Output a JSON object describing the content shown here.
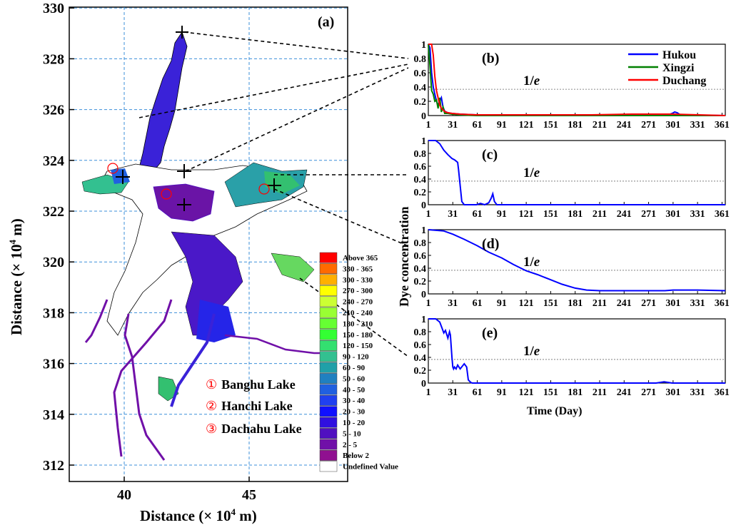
{
  "panel_a": {
    "label": "(a)",
    "xlabel": "Distance (× 10",
    "xlabel_exp": "4",
    "xlabel_unit": " m)",
    "ylabel": "Distance (× 10",
    "ylabel_exp": "4",
    "ylabel_unit": " m)",
    "x_ticks": [
      "40",
      "45"
    ],
    "y_ticks": [
      "312",
      "314",
      "316",
      "318",
      "320",
      "322",
      "324",
      "326",
      "328",
      "330"
    ],
    "lakes": [
      {
        "num": "①",
        "name": "Banghu Lake"
      },
      {
        "num": "②",
        "name": "Hanchi Lake"
      },
      {
        "num": "③",
        "name": "Dachahu Lake"
      }
    ],
    "legend": [
      {
        "label": "Above 365",
        "color": "#ff0000"
      },
      {
        "label": "330 - 365",
        "color": "#ff6a00"
      },
      {
        "label": "300 - 330",
        "color": "#ffb000"
      },
      {
        "label": "270 - 300",
        "color": "#ffff00"
      },
      {
        "label": "240 - 270",
        "color": "#ccff33"
      },
      {
        "label": "210 - 240",
        "color": "#99ff33"
      },
      {
        "label": "180 - 210",
        "color": "#66ff33"
      },
      {
        "label": "150 - 180",
        "color": "#33ff33"
      },
      {
        "label": "120 - 150",
        "color": "#33e070"
      },
      {
        "label": "90 - 120",
        "color": "#33c090"
      },
      {
        "label": "60 - 90",
        "color": "#20a0a8"
      },
      {
        "label": "50 - 60",
        "color": "#2080c0"
      },
      {
        "label": "40 - 50",
        "color": "#2060e0"
      },
      {
        "label": "30 - 40",
        "color": "#2040f0"
      },
      {
        "label": "20 - 30",
        "color": "#1010ff"
      },
      {
        "label": "10 - 20",
        "color": "#3010e0"
      },
      {
        "label": "5 - 10",
        "color": "#5010c0"
      },
      {
        "label": "2 - 5",
        "color": "#7010a8"
      },
      {
        "label": "Below 2",
        "color": "#901090"
      },
      {
        "label": "Undefined Value",
        "color": "#ffffff"
      }
    ]
  },
  "shared": {
    "ylabel": "Dye concentration",
    "xlabel": "Time (Day)",
    "threshold_label": "1/e",
    "x_ticks": [
      "1",
      "31",
      "61",
      "91",
      "121",
      "151",
      "181",
      "211",
      "241",
      "271",
      "301",
      "331",
      "361"
    ],
    "y_ticks": [
      "0",
      "0.2",
      "0.4",
      "0.6",
      "0.8",
      "1"
    ]
  },
  "chart_data": [
    {
      "type": "line",
      "panel": "(b)",
      "xlabel": "",
      "ylabel": "",
      "xlim": [
        1,
        365
      ],
      "ylim": [
        0,
        1
      ],
      "threshold": 0.368,
      "legend": "top-right",
      "series": [
        {
          "name": "Hukou",
          "color": "#0000ff",
          "x": [
            1,
            3,
            5,
            7,
            9,
            11,
            13,
            15,
            17,
            19,
            21,
            25,
            30,
            40,
            60,
            120,
            200,
            290,
            295,
            300,
            303,
            306,
            310,
            365
          ],
          "y": [
            1.0,
            0.95,
            0.6,
            0.4,
            0.3,
            0.2,
            0.15,
            0.2,
            0.25,
            0.12,
            0.06,
            0.04,
            0.03,
            0.02,
            0.01,
            0.0,
            0.0,
            0.0,
            0.01,
            0.03,
            0.05,
            0.04,
            0.01,
            0.0
          ]
        },
        {
          "name": "Xingzi",
          "color": "#008000",
          "x": [
            1,
            3,
            5,
            7,
            9,
            11,
            13,
            15,
            17,
            19,
            21,
            25,
            30,
            40,
            60,
            120,
            200,
            300,
            365
          ],
          "y": [
            1.0,
            0.7,
            0.35,
            0.3,
            0.2,
            0.22,
            0.1,
            0.25,
            0.05,
            0.12,
            0.03,
            0.03,
            0.02,
            0.01,
            0.0,
            0.0,
            0.0,
            0.0,
            0.0
          ]
        },
        {
          "name": "Duchang",
          "color": "#ff0000",
          "x": [
            1,
            3,
            5,
            7,
            9,
            11,
            13,
            15,
            17,
            19,
            22,
            25,
            30,
            40,
            60,
            120,
            200,
            250,
            290,
            300,
            365
          ],
          "y": [
            1.0,
            1.0,
            1.0,
            0.85,
            0.55,
            0.35,
            0.25,
            0.15,
            0.1,
            0.08,
            0.05,
            0.04,
            0.03,
            0.02,
            0.01,
            0.01,
            0.01,
            0.02,
            0.02,
            0.02,
            0.0
          ]
        }
      ]
    },
    {
      "type": "line",
      "panel": "(c)",
      "xlim": [
        1,
        365
      ],
      "ylim": [
        0,
        1
      ],
      "threshold": 0.368,
      "series": [
        {
          "name": "",
          "color": "#0000ff",
          "x": [
            1,
            10,
            15,
            20,
            25,
            30,
            33,
            35,
            37,
            38,
            40,
            42,
            45,
            50,
            55,
            60,
            65,
            70,
            75,
            78,
            80,
            82,
            85,
            90,
            100,
            365
          ],
          "y": [
            1.0,
            1.0,
            0.95,
            0.85,
            0.78,
            0.72,
            0.7,
            0.68,
            0.66,
            0.55,
            0.3,
            0.05,
            0.0,
            0.0,
            0.0,
            0.0,
            0.02,
            0.0,
            0.03,
            0.1,
            0.17,
            0.05,
            0.0,
            0.0,
            0.0,
            0.0
          ]
        }
      ]
    },
    {
      "type": "line",
      "panel": "(d)",
      "xlim": [
        1,
        365
      ],
      "ylim": [
        0,
        1
      ],
      "threshold": 0.368,
      "series": [
        {
          "name": "",
          "color": "#0000ff",
          "x": [
            1,
            20,
            31,
            45,
            61,
            75,
            91,
            105,
            121,
            135,
            151,
            165,
            181,
            195,
            211,
            241,
            271,
            291,
            301,
            331,
            365
          ],
          "y": [
            1.0,
            0.98,
            0.93,
            0.85,
            0.75,
            0.65,
            0.56,
            0.46,
            0.36,
            0.3,
            0.22,
            0.15,
            0.09,
            0.06,
            0.05,
            0.05,
            0.05,
            0.05,
            0.06,
            0.06,
            0.05
          ]
        }
      ]
    },
    {
      "type": "line",
      "panel": "(e)",
      "xlim": [
        1,
        365
      ],
      "ylim": [
        0,
        1
      ],
      "threshold": 0.368,
      "series": [
        {
          "name": "",
          "color": "#0000ff",
          "x": [
            1,
            5,
            10,
            15,
            18,
            20,
            22,
            25,
            27,
            28,
            30,
            31,
            32,
            33,
            35,
            37,
            40,
            45,
            48,
            50,
            53,
            55,
            60,
            65,
            90,
            120,
            280,
            290,
            295,
            300,
            365
          ],
          "y": [
            1.0,
            1.0,
            1.0,
            0.95,
            0.85,
            0.78,
            0.82,
            0.7,
            0.8,
            0.75,
            0.4,
            0.25,
            0.22,
            0.25,
            0.22,
            0.28,
            0.22,
            0.3,
            0.25,
            0.05,
            0.01,
            0.0,
            0.0,
            0.0,
            0.0,
            0.0,
            0.0,
            0.02,
            0.01,
            0.0,
            0.0
          ]
        }
      ]
    }
  ]
}
